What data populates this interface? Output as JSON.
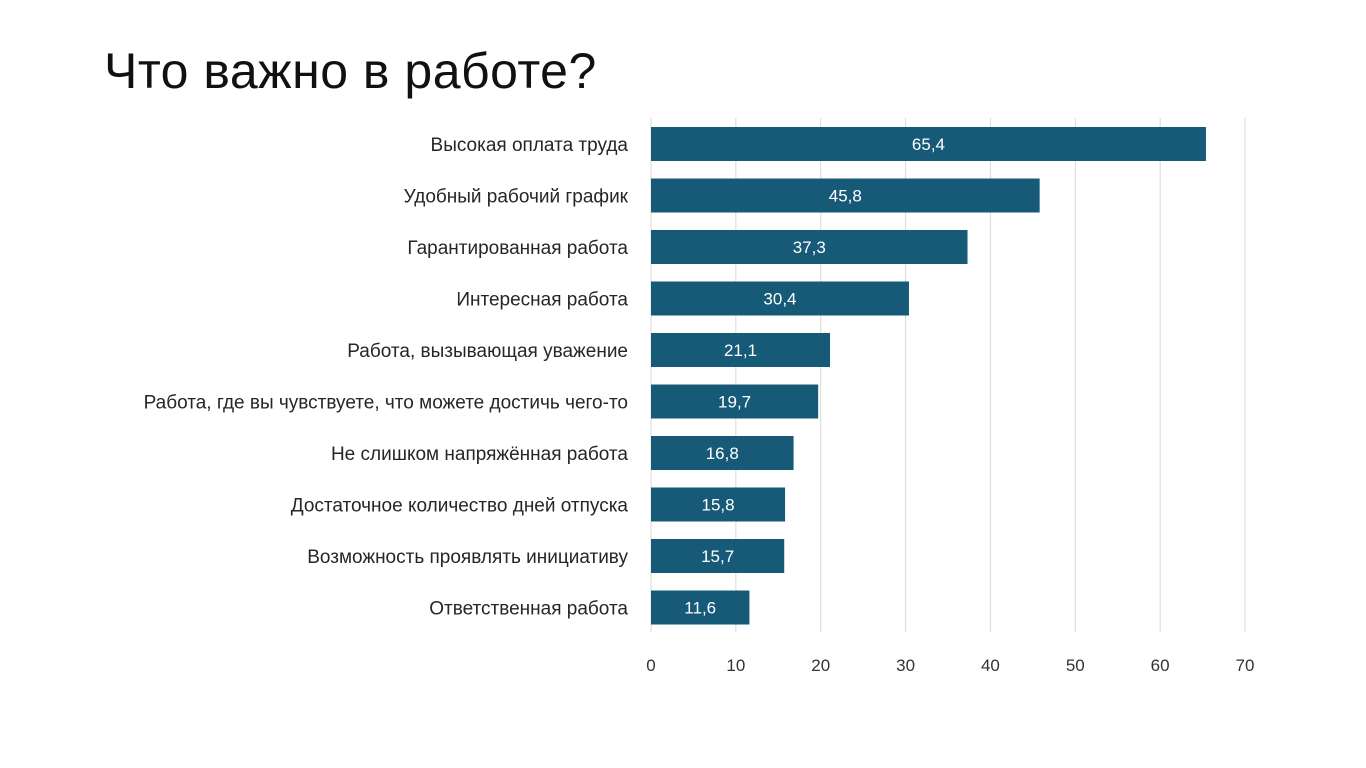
{
  "slide": {
    "title": "Что важно в работе?"
  },
  "chart_data": {
    "type": "bar",
    "orientation": "horizontal",
    "title": "",
    "xlabel": "",
    "ylabel": "",
    "categories": [
      "Высокая оплата труда",
      "Удобный рабочий график",
      "Гарантированная работа",
      "Интересная работа",
      "Работа, вызывающая уважение",
      "Работа, где вы чувствуете, что можете достичь чего-то",
      "Не слишком напряжённая работа",
      "Достаточное количество дней отпуска",
      "Возможность проявлять инициативу",
      "Ответственная работа"
    ],
    "values": [
      65.4,
      45.8,
      37.3,
      30.4,
      21.1,
      19.7,
      16.8,
      15.8,
      15.7,
      11.6
    ],
    "data_labels": [
      "65,4",
      "45,8",
      "37,3",
      "30,4",
      "21,1",
      "19,7",
      "16,8",
      "15,8",
      "15,7",
      "11,6"
    ],
    "xlim": [
      0,
      70
    ],
    "x_ticks": [
      0,
      10,
      20,
      30,
      40,
      50,
      60,
      70
    ],
    "x_tick_labels": [
      "0",
      "10",
      "20",
      "30",
      "40",
      "50",
      "60",
      "70"
    ],
    "grid": true,
    "legend": "none",
    "colors": {
      "bar": "#165a77",
      "grid": "#d9d9d9",
      "data_label": "#ffffff"
    }
  }
}
